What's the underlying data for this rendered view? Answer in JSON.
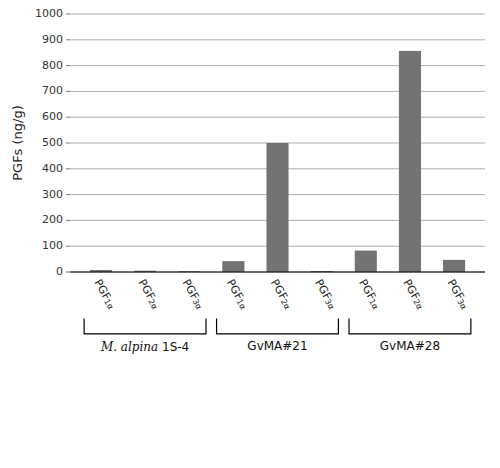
{
  "chart_data": {
    "type": "bar",
    "categories": [
      "PGF1α",
      "PGF2α",
      "PGF3α",
      "PGF1α",
      "PGF2α",
      "PGF3α",
      "PGF1α",
      "PGF2α",
      "PGF3α"
    ],
    "values": [
      8,
      5,
      3,
      42,
      500,
      4,
      83,
      857,
      47
    ],
    "color": "#737373",
    "ylabel": "PGFs (ng/g)",
    "ylim": [
      0,
      1000
    ],
    "yticks": [
      0,
      100,
      200,
      300,
      400,
      500,
      600,
      700,
      800,
      900,
      1000
    ],
    "grid": true,
    "groups": [
      {
        "label": "M. alpina 1S-4",
        "italic": "M. alpina",
        "start": 0,
        "end": 2
      },
      {
        "label": "GvMA#21",
        "italic": "",
        "start": 3,
        "end": 5
      },
      {
        "label": "GvMA#28",
        "italic": "",
        "start": 6,
        "end": 8
      }
    ]
  }
}
